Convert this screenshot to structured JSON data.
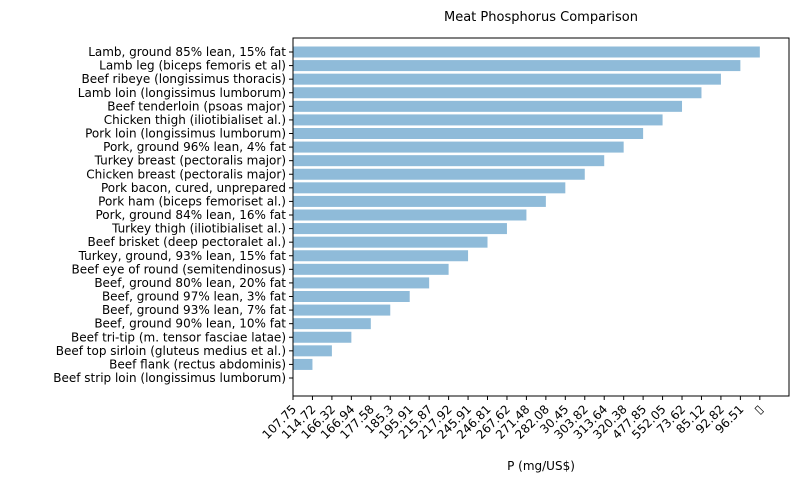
{
  "chart_data": {
    "type": "bar",
    "orientation": "horizontal",
    "title": "Meat Phosphorus Comparison",
    "xlabel": "P (mg/US$)",
    "ylabel": "",
    "bar_color": "#1f77b4",
    "categories": [
      "Lamb, ground 85% lean, 15% fat",
      "Lamb leg (biceps femoris et al)",
      "Beef ribeye (longissimus thoracis)",
      "Lamb loin (longissimus lumborum)",
      "Beef tenderloin (psoas major)",
      "Chicken thigh (iliotibialiset al.)",
      "Pork loin (longissimus lumborum)",
      "Pork, ground 96% lean, 4% fat",
      "Turkey breast (pectoralis major)",
      "Chicken breast (pectoralis major)",
      "Pork bacon, cured, unprepared",
      "Pork ham (biceps femoriset al.)",
      "Pork, ground 84% lean, 16% fat",
      "Turkey thigh (iliotibialiset al.)",
      "Beef brisket (deep pectoralet al.)",
      "Turkey, ground, 93% lean, 15% fat",
      "Beef eye of round (semitendinosus)",
      "Beef, ground 80% lean, 20% fat",
      "Beef, ground 97% lean, 3% fat",
      "Beef, ground 93% lean, 7% fat",
      "Beef, ground 90% lean, 10% fat",
      "Beef tri-tip (m. tensor fasciae latae)",
      "Beef top sirloin (gluteus medius et al.)",
      "Beef flank (rectus abdominis)",
      "Beef strip loin (longissimus lumborum)"
    ],
    "values": [
      24,
      23,
      22,
      21,
      20,
      19,
      18,
      17,
      16,
      15,
      14,
      13,
      12,
      11,
      10,
      9,
      8,
      7,
      6,
      5,
      4,
      3,
      2,
      1,
      0
    ],
    "xticks": [
      "107.75",
      "114.72",
      "166.32",
      "166.94",
      "177.58",
      "185.3",
      "195.91",
      "215.87",
      "217.92",
      "245.91",
      "246.81",
      "267.62",
      "271.48",
      "282.08",
      "30.45",
      "303.82",
      "313.64",
      "320.38",
      "477.85",
      "552.05",
      "73.62",
      "85.12",
      "92.82",
      "96.51",
      "▯"
    ],
    "xlim": [
      0,
      25.5
    ],
    "grid": false
  }
}
